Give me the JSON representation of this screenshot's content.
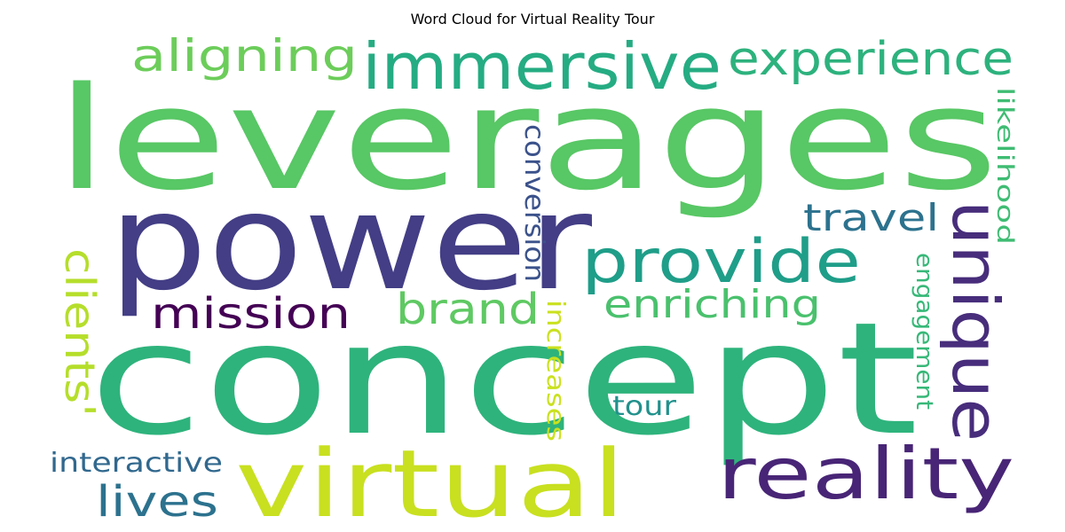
{
  "title": "Word Cloud for Virtual Reality Tour",
  "words": [
    {
      "text": "leverages",
      "color": "#58c765"
    },
    {
      "text": "power",
      "color": "#433e85"
    },
    {
      "text": "concept",
      "color": "#2eb37c"
    },
    {
      "text": "virtual",
      "color": "#c8e020"
    },
    {
      "text": "reality",
      "color": "#482576"
    },
    {
      "text": "immersive",
      "color": "#25ac82"
    },
    {
      "text": "unique",
      "color": "#472d7b"
    },
    {
      "text": "provide",
      "color": "#1f9e89"
    },
    {
      "text": "aligning",
      "color": "#6ccd5a"
    },
    {
      "text": "experience",
      "color": "#2db27d"
    },
    {
      "text": "mission",
      "color": "#440154"
    },
    {
      "text": "brand",
      "color": "#5ec962"
    },
    {
      "text": "enriching",
      "color": "#4ac16d"
    },
    {
      "text": "travel",
      "color": "#2c728e"
    },
    {
      "text": "clients'",
      "color": "#b5de2b"
    },
    {
      "text": "conversion",
      "color": "#3b528b"
    },
    {
      "text": "likelihood",
      "color": "#3fbc73"
    },
    {
      "text": "engagement",
      "color": "#37b878"
    },
    {
      "text": "increases",
      "color": "#cae11f"
    },
    {
      "text": "tour",
      "color": "#21918c"
    },
    {
      "text": "interactive",
      "color": "#31688e"
    },
    {
      "text": "lives",
      "color": "#2c728e"
    }
  ]
}
